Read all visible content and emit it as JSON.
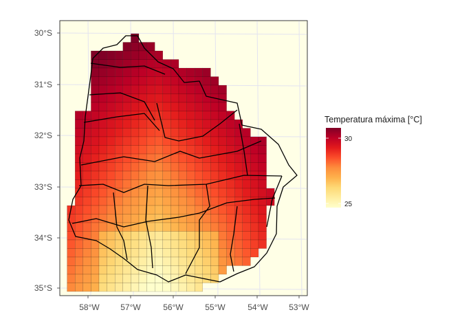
{
  "map": {
    "type": "heatmap",
    "background_color": "#FFFFE6",
    "axes": {
      "x_ticks": [
        "58°W",
        "57°W",
        "56°W",
        "55°W",
        "54°W",
        "53°W"
      ],
      "y_ticks": [
        "30°S",
        "31°S",
        "32°S",
        "33°S",
        "34°S",
        "35°S"
      ]
    },
    "legend": {
      "title": "Temperatura máxima [°C]",
      "range": [
        24.5,
        31.2
      ],
      "ticks": [
        "30",
        "25"
      ],
      "colors": [
        "#FFFFCC",
        "#FFEDA0",
        "#FED976",
        "#FEB24C",
        "#FD8D3C",
        "#FC4E2A",
        "#E31A1C",
        "#BD0026",
        "#800026"
      ]
    },
    "grid": {
      "columns": 28,
      "rows": 30,
      "row_cell_starts": [
        9,
        8,
        4,
        4,
        4,
        4,
        4,
        4,
        4,
        2,
        2,
        2,
        2,
        2,
        2,
        2,
        2,
        2,
        2,
        2,
        1,
        1,
        1,
        1,
        1,
        1,
        1,
        1,
        1,
        1
      ],
      "row_cell_ends": [
        10,
        12,
        13,
        15,
        19,
        20,
        21,
        21,
        21,
        22,
        23,
        24,
        26,
        26,
        26,
        26,
        26,
        26,
        27,
        27,
        26,
        26,
        26,
        26,
        26,
        25,
        24,
        21,
        20,
        18
      ],
      "temperature_range_note": ""
    }
  }
}
